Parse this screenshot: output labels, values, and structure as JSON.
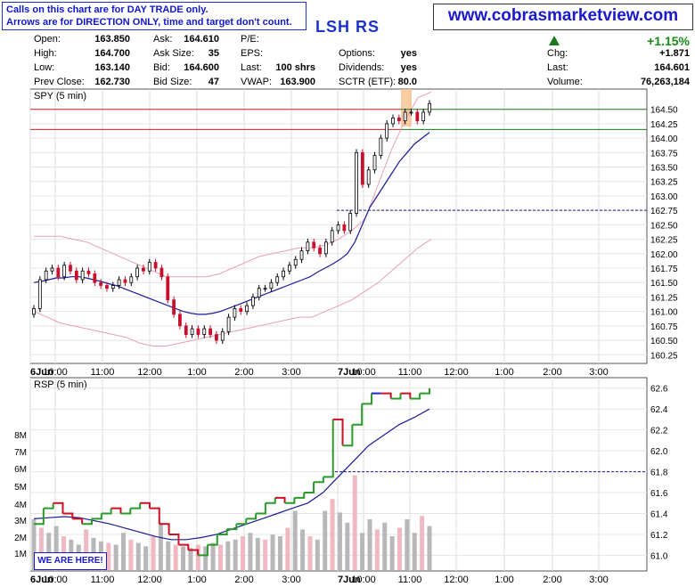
{
  "notice": {
    "line1": "Calls on this chart are for DAY TRADE only.",
    "line2": "Arrows are for DIRECTION ONLY, time and target don't count."
  },
  "site": "www.cobrasmarketview.com",
  "ticker": "LSH RS",
  "quote": {
    "open_label": "Open:",
    "open": "163.850",
    "high_label": "High:",
    "high": "164.700",
    "low_label": "Low:",
    "low": "163.140",
    "prevclose_label": "Prev Close:",
    "prevclose": "162.730",
    "ask_label": "Ask:",
    "ask": "164.610",
    "asksize_label": "Ask Size:",
    "asksize": "35",
    "bid_label": "Bid:",
    "bid": "164.600",
    "bidsize_label": "Bid Size:",
    "bidsize": "47",
    "pe_label": "P/E:",
    "eps_label": "EPS:",
    "last_label": "Last:",
    "last": "100 shrs",
    "vwap_label": "VWAP:",
    "vwap": "163.900",
    "options_label": "Options:",
    "options": "yes",
    "dividends_label": "Dividends:",
    "dividends": "yes",
    "sctr_label": "SCTR (ETF):",
    "sctr": "80.0",
    "change_pct": "+1.15%",
    "chg_label": "Chg:",
    "chg": "+1.871",
    "last2_label": "Last:",
    "last2": "164.601",
    "volume_label": "Volume:",
    "volume": "76,263,184"
  },
  "badge": "WE ARE HERE!",
  "colors": {
    "up": "#000000",
    "down": "#c8102e",
    "ma": "#1a1a99",
    "band": "#e8a0b0",
    "resistance": "#cc2222",
    "support": "#1a7a1a"
  },
  "chart_data": [
    {
      "type": "candlestick",
      "title": "SPY (5 min)",
      "ylim": [
        160.1,
        164.85
      ],
      "y_ticks": [
        "164.50",
        "164.25",
        "164.00",
        "163.75",
        "163.50",
        "163.25",
        "163.00",
        "162.75",
        "162.50",
        "162.25",
        "162.00",
        "161.75",
        "161.50",
        "161.25",
        "161.00",
        "160.75",
        "160.50",
        "160.25"
      ],
      "x_ticks": [
        "6Jun",
        "10:00",
        "11:00",
        "12:00",
        "1:00",
        "2:00",
        "3:00",
        "7Jun",
        "10:00",
        "11:00",
        "12:00",
        "1:00",
        "2:00",
        "3:00"
      ],
      "close": [
        161.05,
        161.55,
        161.7,
        161.75,
        161.6,
        161.8,
        161.7,
        161.55,
        161.7,
        161.65,
        161.5,
        161.45,
        161.4,
        161.45,
        161.55,
        161.5,
        161.6,
        161.75,
        161.7,
        161.85,
        161.75,
        161.6,
        161.2,
        160.95,
        160.75,
        160.6,
        160.7,
        160.6,
        160.7,
        160.6,
        160.5,
        160.65,
        160.9,
        161.05,
        161.0,
        161.1,
        161.25,
        161.4,
        161.4,
        161.5,
        161.6,
        161.7,
        161.8,
        161.9,
        162.05,
        162.2,
        162.1,
        162.0,
        162.2,
        162.4,
        162.5,
        162.4,
        162.7,
        163.75,
        163.2,
        163.45,
        163.7,
        164.0,
        164.25,
        164.35,
        164.3,
        164.45,
        164.45,
        164.3,
        164.45,
        164.6
      ],
      "ma": [
        161.5,
        161.52,
        161.55,
        161.58,
        161.58,
        161.6,
        161.6,
        161.58,
        161.55,
        161.52,
        161.48,
        161.45,
        161.4,
        161.35,
        161.3,
        161.25,
        161.2,
        161.15,
        161.1,
        161.05,
        161.0,
        160.97,
        160.95,
        160.95,
        160.97,
        161.0,
        161.05,
        161.1,
        161.15,
        161.2,
        161.25,
        161.3,
        161.35,
        161.4,
        161.45,
        161.5,
        161.55,
        161.6,
        161.68,
        161.75,
        161.82,
        161.9,
        162.0,
        162.2,
        162.5,
        162.8,
        163.0,
        163.2,
        163.4,
        163.6,
        163.75,
        163.9,
        164.0,
        164.1
      ],
      "upper_band": [
        162.3,
        162.3,
        162.3,
        162.25,
        162.2,
        162.1,
        162.0,
        161.9,
        161.8,
        161.7,
        161.6,
        161.6,
        161.6,
        161.6,
        161.65,
        161.75,
        161.85,
        161.95,
        162.0,
        162.05,
        162.1,
        162.1,
        162.15,
        162.25,
        162.4,
        162.6,
        163.2,
        163.8,
        164.3,
        164.7,
        164.8
      ],
      "lower_band": [
        161.0,
        160.9,
        160.8,
        160.75,
        160.7,
        160.65,
        160.6,
        160.55,
        160.45,
        160.4,
        160.4,
        160.45,
        160.5,
        160.55,
        160.6,
        160.65,
        160.7,
        160.75,
        160.8,
        160.85,
        160.9,
        160.9,
        161.0,
        161.1,
        161.2,
        161.35,
        161.5,
        161.7,
        161.9,
        162.1,
        162.25
      ],
      "resistance": [
        164.5,
        164.15
      ],
      "support": [
        164.5,
        164.15
      ],
      "marker": 162.75
    },
    {
      "type": "line",
      "title": "RSP (5 min)",
      "ylim": [
        60.85,
        62.7
      ],
      "y_ticks": [
        "62.6",
        "62.4",
        "62.2",
        "62.0",
        "61.8",
        "61.6",
        "61.4",
        "61.2",
        "61.0"
      ],
      "volume_ticks": [
        "8M",
        "7M",
        "6M",
        "5M",
        "4M",
        "3M",
        "2M",
        "1M"
      ],
      "x_ticks": [
        "6Jun",
        "10:00",
        "11:00",
        "12:00",
        "1:00",
        "2:00",
        "3:00",
        "7Jun",
        "10:00",
        "11:00",
        "12:00",
        "1:00",
        "2:00",
        "3:00"
      ],
      "price": [
        61.3,
        61.45,
        61.5,
        61.4,
        61.35,
        61.3,
        61.35,
        61.4,
        61.45,
        61.4,
        61.45,
        61.5,
        61.45,
        61.3,
        61.2,
        61.1,
        61.05,
        61.0,
        61.1,
        61.2,
        61.25,
        61.3,
        61.35,
        61.4,
        61.5,
        61.55,
        61.5,
        61.55,
        61.6,
        61.7,
        61.75,
        62.3,
        62.05,
        62.25,
        62.45,
        62.55,
        62.55,
        62.5,
        62.55,
        62.5,
        62.55,
        62.6
      ],
      "ma": [
        61.35,
        61.36,
        61.37,
        61.36,
        61.33,
        61.3,
        61.26,
        61.22,
        61.18,
        61.15,
        61.15,
        61.17,
        61.2,
        61.25,
        61.3,
        61.35,
        61.4,
        61.45,
        61.5,
        61.6,
        61.75,
        61.9,
        62.05,
        62.15,
        62.25,
        62.32,
        62.4
      ],
      "volume": [
        3.0,
        2.5,
        2.2,
        2.6,
        2.0,
        1.8,
        1.5,
        2.4,
        1.9,
        1.7,
        1.6,
        1.5,
        2.2,
        1.8,
        1.6,
        1.4,
        2.0,
        2.8,
        1.7,
        1.5,
        1.4,
        1.3,
        1.5,
        1.4,
        1.6,
        1.5,
        1.7,
        1.8,
        2.0,
        2.2,
        1.9,
        1.8,
        2.1,
        2.0,
        2.5,
        3.5,
        2.4,
        2.0,
        1.8,
        3.5,
        4.2,
        3.4,
        2.8,
        5.6,
        2.2,
        3.0,
        2.4,
        2.8,
        2.0,
        2.5,
        3.0,
        2.2,
        3.2,
        2.6
      ],
      "marker": 61.8
    }
  ]
}
